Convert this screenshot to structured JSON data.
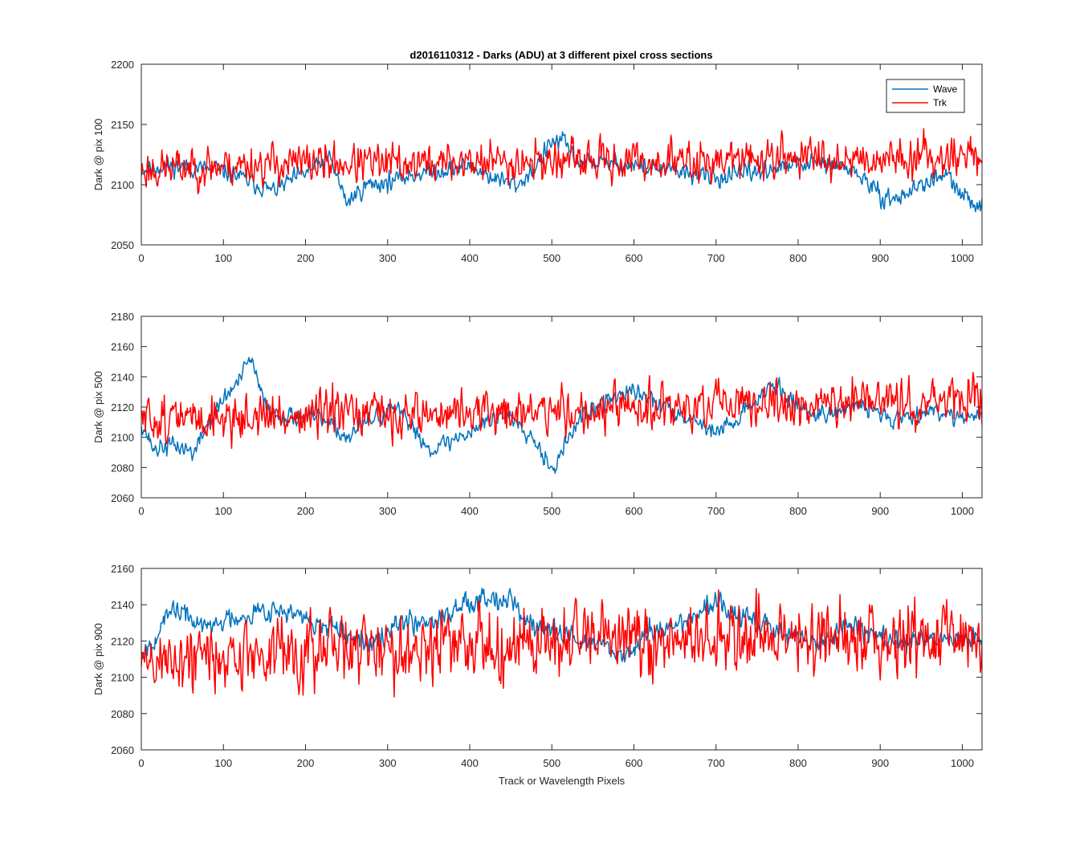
{
  "figure": {
    "title": "d2016110312 - Darks (ADU) at 3 different pixel cross sections",
    "background": "#ffffff"
  },
  "chart_data": [
    {
      "type": "line",
      "title": "d2016110312 - Darks (ADU) at 3 different pixel cross sections",
      "xlabel": "",
      "ylabel": "Dark @ pix 100",
      "xlim": [
        0,
        1024
      ],
      "ylim": [
        2050,
        2200
      ],
      "xticks": [
        0,
        100,
        200,
        300,
        400,
        500,
        600,
        700,
        800,
        900,
        1000
      ],
      "yticks": [
        2050,
        2100,
        2150,
        2200
      ],
      "grid": false,
      "legend": {
        "placement": "top-right",
        "entries": [
          "Wave",
          "Trk"
        ]
      },
      "series": [
        {
          "name": "Wave",
          "color": "#0072BD",
          "noise": 5,
          "seed": 11,
          "x": [
            0,
            30,
            60,
            90,
            115,
            140,
            160,
            200,
            230,
            250,
            275,
            300,
            340,
            370,
            400,
            430,
            460,
            480,
            500,
            515,
            530,
            560,
            600,
            640,
            680,
            700,
            740,
            780,
            820,
            860,
            880,
            900,
            920,
            950,
            980,
            1000,
            1024
          ],
          "y": [
            2112,
            2116,
            2114,
            2113,
            2108,
            2100,
            2095,
            2110,
            2122,
            2085,
            2100,
            2102,
            2110,
            2112,
            2116,
            2105,
            2100,
            2115,
            2135,
            2136,
            2120,
            2118,
            2116,
            2112,
            2108,
            2105,
            2110,
            2115,
            2118,
            2114,
            2105,
            2090,
            2088,
            2100,
            2108,
            2090,
            2082
          ]
        },
        {
          "name": "Trk",
          "color": "#FF0000",
          "noise": 11,
          "seed": 23,
          "x": [
            0,
            100,
            200,
            300,
            400,
            500,
            600,
            700,
            800,
            900,
            1000,
            1024
          ],
          "y": [
            2112,
            2116,
            2118,
            2117,
            2119,
            2120,
            2119,
            2120,
            2123,
            2122,
            2125,
            2124
          ]
        }
      ]
    },
    {
      "type": "line",
      "title": "",
      "xlabel": "",
      "ylabel": "Dark @ pix 500",
      "xlim": [
        0,
        1024
      ],
      "ylim": [
        2060,
        2180
      ],
      "xticks": [
        0,
        100,
        200,
        300,
        400,
        500,
        600,
        700,
        800,
        900,
        1000
      ],
      "yticks": [
        2060,
        2080,
        2100,
        2120,
        2140,
        2160,
        2180
      ],
      "grid": false,
      "series": [
        {
          "name": "Wave",
          "color": "#0072BD",
          "noise": 4,
          "seed": 37,
          "x": [
            0,
            15,
            40,
            65,
            80,
            100,
            120,
            133,
            145,
            160,
            180,
            220,
            250,
            280,
            310,
            330,
            350,
            380,
            400,
            420,
            440,
            460,
            480,
            495,
            505,
            520,
            540,
            580,
            600,
            640,
            680,
            700,
            720,
            750,
            765,
            790,
            820,
            850,
            880,
            900,
            920,
            940,
            960,
            990,
            1024
          ],
          "y": [
            2110,
            2092,
            2095,
            2090,
            2108,
            2125,
            2138,
            2153,
            2130,
            2115,
            2114,
            2112,
            2100,
            2112,
            2118,
            2108,
            2092,
            2098,
            2104,
            2110,
            2115,
            2110,
            2098,
            2084,
            2080,
            2100,
            2115,
            2128,
            2130,
            2120,
            2110,
            2103,
            2110,
            2125,
            2135,
            2125,
            2115,
            2118,
            2120,
            2116,
            2112,
            2115,
            2118,
            2115,
            2113
          ]
        },
        {
          "name": "Trk",
          "color": "#FF0000",
          "noise": 10,
          "seed": 51,
          "x": [
            0,
            200,
            400,
            600,
            800,
            1000,
            1024
          ],
          "y": [
            2112,
            2114,
            2116,
            2118,
            2122,
            2124,
            2124
          ]
        }
      ]
    },
    {
      "type": "line",
      "title": "",
      "xlabel": "Track or Wavelength Pixels",
      "ylabel": "Dark @ pix 900",
      "xlim": [
        0,
        1024
      ],
      "ylim": [
        2060,
        2160
      ],
      "xticks": [
        0,
        100,
        200,
        300,
        400,
        500,
        600,
        700,
        800,
        900,
        1000
      ],
      "yticks": [
        2060,
        2080,
        2100,
        2120,
        2140,
        2160
      ],
      "grid": false,
      "series": [
        {
          "name": "Wave",
          "color": "#0072BD",
          "noise": 4,
          "seed": 67,
          "x": [
            0,
            10,
            40,
            80,
            110,
            160,
            200,
            240,
            270,
            310,
            360,
            400,
            420,
            450,
            470,
            520,
            560,
            590,
            620,
            660,
            700,
            720,
            760,
            800,
            830,
            860,
            890,
            920,
            960,
            1000,
            1024
          ],
          "y": [
            2115,
            2118,
            2138,
            2127,
            2133,
            2138,
            2132,
            2125,
            2118,
            2130,
            2132,
            2142,
            2145,
            2143,
            2130,
            2122,
            2118,
            2112,
            2125,
            2130,
            2142,
            2135,
            2128,
            2122,
            2118,
            2130,
            2125,
            2118,
            2122,
            2120,
            2122
          ]
        },
        {
          "name": "Trk",
          "color": "#FF0000",
          "noise": 13,
          "seed": 89,
          "x": [
            0,
            100,
            200,
            300,
            400,
            500,
            600,
            700,
            800,
            900,
            1024
          ],
          "y": [
            2108,
            2112,
            2114,
            2116,
            2118,
            2120,
            2120,
            2120,
            2121,
            2122,
            2123
          ]
        }
      ]
    }
  ]
}
